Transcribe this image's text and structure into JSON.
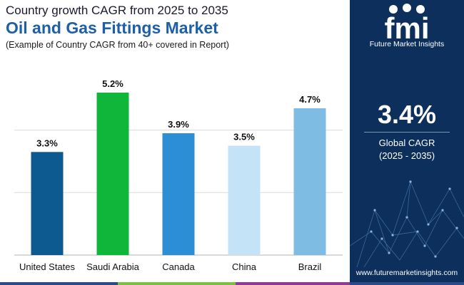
{
  "header": {
    "subtitle": "Country growth CAGR from 2025 to 2035",
    "title": "Oil and Gas Fittings Market",
    "note": "(Example of Country CAGR from 40+ covered in Report)"
  },
  "brand": {
    "logo_letters": "fmi",
    "name": "Future Market Insights",
    "website": "www.futuremarketinsights.com",
    "panel_color": "#0c2f5c"
  },
  "highlight": {
    "value": "3.4%",
    "label_line1": "Global CAGR",
    "label_line2": "(2025 - 2035)"
  },
  "chart_data": {
    "type": "bar",
    "title": "Oil and Gas Fittings Market",
    "subtitle": "Country growth CAGR from 2025 to 2035",
    "xlabel": "",
    "ylabel": "",
    "unit": "%",
    "ylim": [
      0,
      5.2
    ],
    "gridlines": [
      0,
      2,
      4
    ],
    "categories": [
      "United States",
      "Saudi Arabia",
      "Canada",
      "China",
      "Brazil"
    ],
    "values": [
      3.3,
      5.2,
      3.9,
      3.5,
      4.7
    ],
    "data_labels": [
      "3.3%",
      "5.2%",
      "3.9%",
      "3.5%",
      "4.7%"
    ],
    "colors": [
      "#0d5a91",
      "#0fb63a",
      "#2c8fd6",
      "#c5e3f6",
      "#7fbce3"
    ]
  },
  "strip_colors": [
    "#2a4b88",
    "#7ac142",
    "#8e3a96",
    "#2a4b88"
  ]
}
